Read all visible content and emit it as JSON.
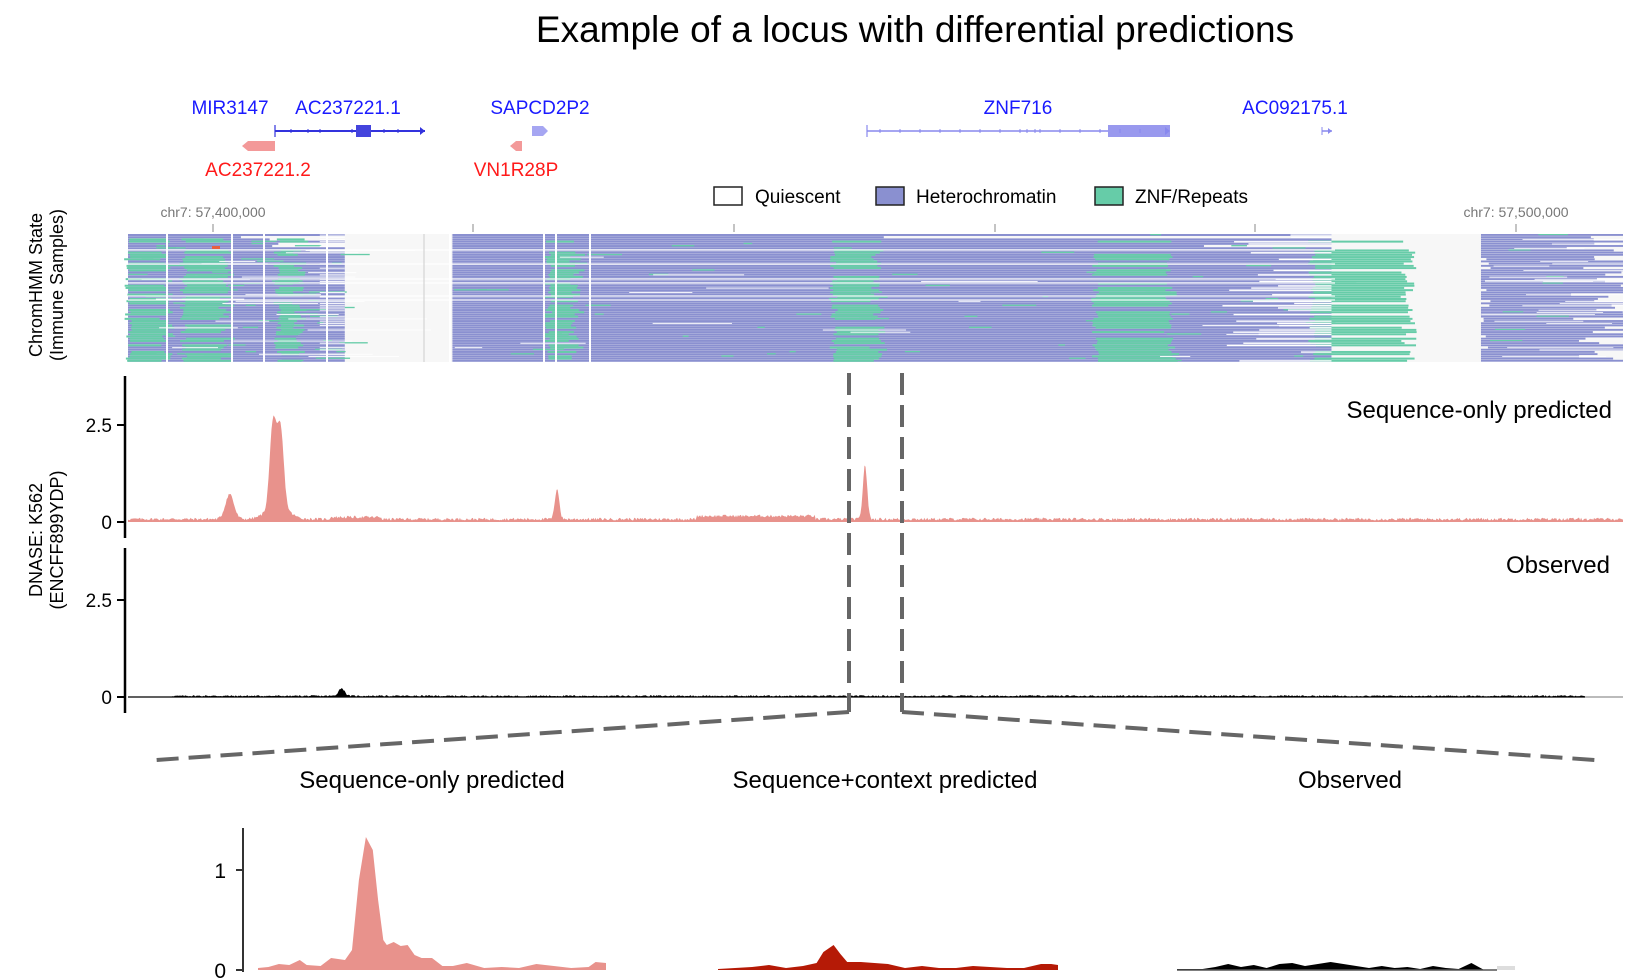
{
  "chart_data": [
    {
      "type": "annotation",
      "panel": "gene-track",
      "title": "Example of a locus with differential predictions",
      "genes": [
        {
          "name": "MIR3147",
          "strand": "+",
          "color": "#1a1aff"
        },
        {
          "name": "AC237221.1",
          "strand": "+",
          "color": "#1a1aff"
        },
        {
          "name": "SAPCD2P2",
          "strand": "+",
          "color": "#1a1aff"
        },
        {
          "name": "ZNF716",
          "strand": "+",
          "color": "#1a1aff"
        },
        {
          "name": "AC092175.1",
          "strand": "+",
          "color": "#1a1aff"
        },
        {
          "name": "AC237221.2",
          "strand": "-",
          "color": "#ff1a1a"
        },
        {
          "name": "VN1R28P",
          "strand": "-",
          "color": "#ff1a1a"
        }
      ],
      "x_ticks": [
        "chr7: 57,400,000",
        "chr7: 57,500,000"
      ]
    },
    {
      "type": "heatmap",
      "panel": "chromhmm",
      "ylabel": [
        "ChromHMM State",
        "(Immune Samples)"
      ],
      "legend": [
        {
          "label": "Quiescent",
          "color": "#ffffff"
        },
        {
          "label": "Heterochromatin",
          "color": "#8a90d0"
        },
        {
          "label": "ZNF/Repeats",
          "color": "#66cca8"
        }
      ],
      "legend_position": "top-right",
      "state_colors": {
        "quiescent": "#ffffff",
        "heterochromatin": "#8a90d0",
        "znf": "#66cca8",
        "missing": "#f7f7f7"
      },
      "regions": [
        {
          "from": 0.0,
          "to": 0.145,
          "state": "mixed-left"
        },
        {
          "from": 0.145,
          "to": 0.217,
          "state": "no-data"
        },
        {
          "from": 0.217,
          "to": 0.805,
          "state": "mixed-main"
        },
        {
          "from": 0.805,
          "to": 0.905,
          "state": "no-data"
        },
        {
          "from": 0.905,
          "to": 1.0,
          "state": "heterochromatin-sparse"
        }
      ]
    },
    {
      "type": "area",
      "panel": "sequence-only-predicted",
      "label": "Sequence-only predicted",
      "ylabel": [
        "DNASE: K562",
        "(ENCFF899YDP)"
      ],
      "color": "#e8928c",
      "ylim": [
        0,
        3.5
      ],
      "yticks": [
        0,
        2.5
      ],
      "peaks": [
        {
          "x": 0.068,
          "y": 0.65,
          "width": 0.004
        },
        {
          "x": 0.097,
          "y": 2.2,
          "width": 0.003
        },
        {
          "x": 0.102,
          "y": 2.0,
          "width": 0.003
        },
        {
          "x": 0.287,
          "y": 0.8,
          "width": 0.002
        },
        {
          "x": 0.493,
          "y": 1.4,
          "width": 0.002
        }
      ],
      "baseline": 0.08
    },
    {
      "type": "area",
      "panel": "observed",
      "label": "Observed",
      "color": "#000000",
      "ylim": [
        0,
        3.5
      ],
      "yticks": [
        0,
        2.5
      ],
      "baseline": 0.03,
      "peaks": [
        {
          "x": 0.12,
          "y": 0.2,
          "width": 0.003
        }
      ]
    },
    {
      "type": "area",
      "panel": "zoom-sequence-only",
      "title": "Sequence-only predicted",
      "color": "#e8928c",
      "ylim": [
        0,
        1.4
      ],
      "yticks": [
        0,
        1
      ],
      "x": [
        0,
        0.03,
        0.06,
        0.09,
        0.12,
        0.14,
        0.18,
        0.21,
        0.25,
        0.27,
        0.29,
        0.31,
        0.33,
        0.345,
        0.36,
        0.37,
        0.39,
        0.41,
        0.43,
        0.45,
        0.47,
        0.5,
        0.53,
        0.56,
        0.6,
        0.65,
        0.7,
        0.75,
        0.8,
        0.85,
        0.9,
        0.95,
        0.97,
        1.0
      ],
      "values": [
        0.02,
        0.03,
        0.06,
        0.05,
        0.1,
        0.05,
        0.04,
        0.12,
        0.1,
        0.2,
        0.9,
        1.33,
        1.2,
        0.7,
        0.3,
        0.25,
        0.28,
        0.24,
        0.25,
        0.15,
        0.12,
        0.12,
        0.04,
        0.04,
        0.07,
        0.02,
        0.03,
        0.02,
        0.06,
        0.04,
        0.02,
        0.03,
        0.08,
        0.07
      ]
    },
    {
      "type": "area",
      "panel": "zoom-sequence-context",
      "title": "Sequence+context predicted",
      "color": "#b51a06",
      "ylim": [
        0,
        1.4
      ],
      "x": [
        0,
        0.05,
        0.1,
        0.15,
        0.2,
        0.25,
        0.29,
        0.31,
        0.34,
        0.36,
        0.38,
        0.42,
        0.5,
        0.55,
        0.6,
        0.65,
        0.7,
        0.75,
        0.8,
        0.85,
        0.9,
        0.95,
        0.98,
        1.0
      ],
      "values": [
        0.01,
        0.02,
        0.03,
        0.05,
        0.02,
        0.04,
        0.07,
        0.18,
        0.25,
        0.16,
        0.08,
        0.08,
        0.06,
        0.02,
        0.04,
        0.02,
        0.02,
        0.04,
        0.03,
        0.02,
        0.02,
        0.06,
        0.06,
        0.05
      ]
    },
    {
      "type": "area",
      "panel": "zoom-observed",
      "title": "Observed",
      "color": "#000000",
      "ylim": [
        0,
        1.4
      ],
      "x": [
        0,
        0.08,
        0.12,
        0.16,
        0.2,
        0.24,
        0.28,
        0.32,
        0.36,
        0.4,
        0.44,
        0.48,
        0.52,
        0.56,
        0.6,
        0.64,
        0.68,
        0.72,
        0.76,
        0.8,
        0.84,
        0.88,
        0.92,
        0.96,
        1.0
      ],
      "values": [
        0.01,
        0.01,
        0.03,
        0.06,
        0.03,
        0.05,
        0.02,
        0.06,
        0.07,
        0.04,
        0.06,
        0.08,
        0.06,
        0.04,
        0.02,
        0.04,
        0.02,
        0.03,
        0.01,
        0.04,
        0.02,
        0.01,
        0.07,
        0.0,
        0.0
      ]
    }
  ]
}
